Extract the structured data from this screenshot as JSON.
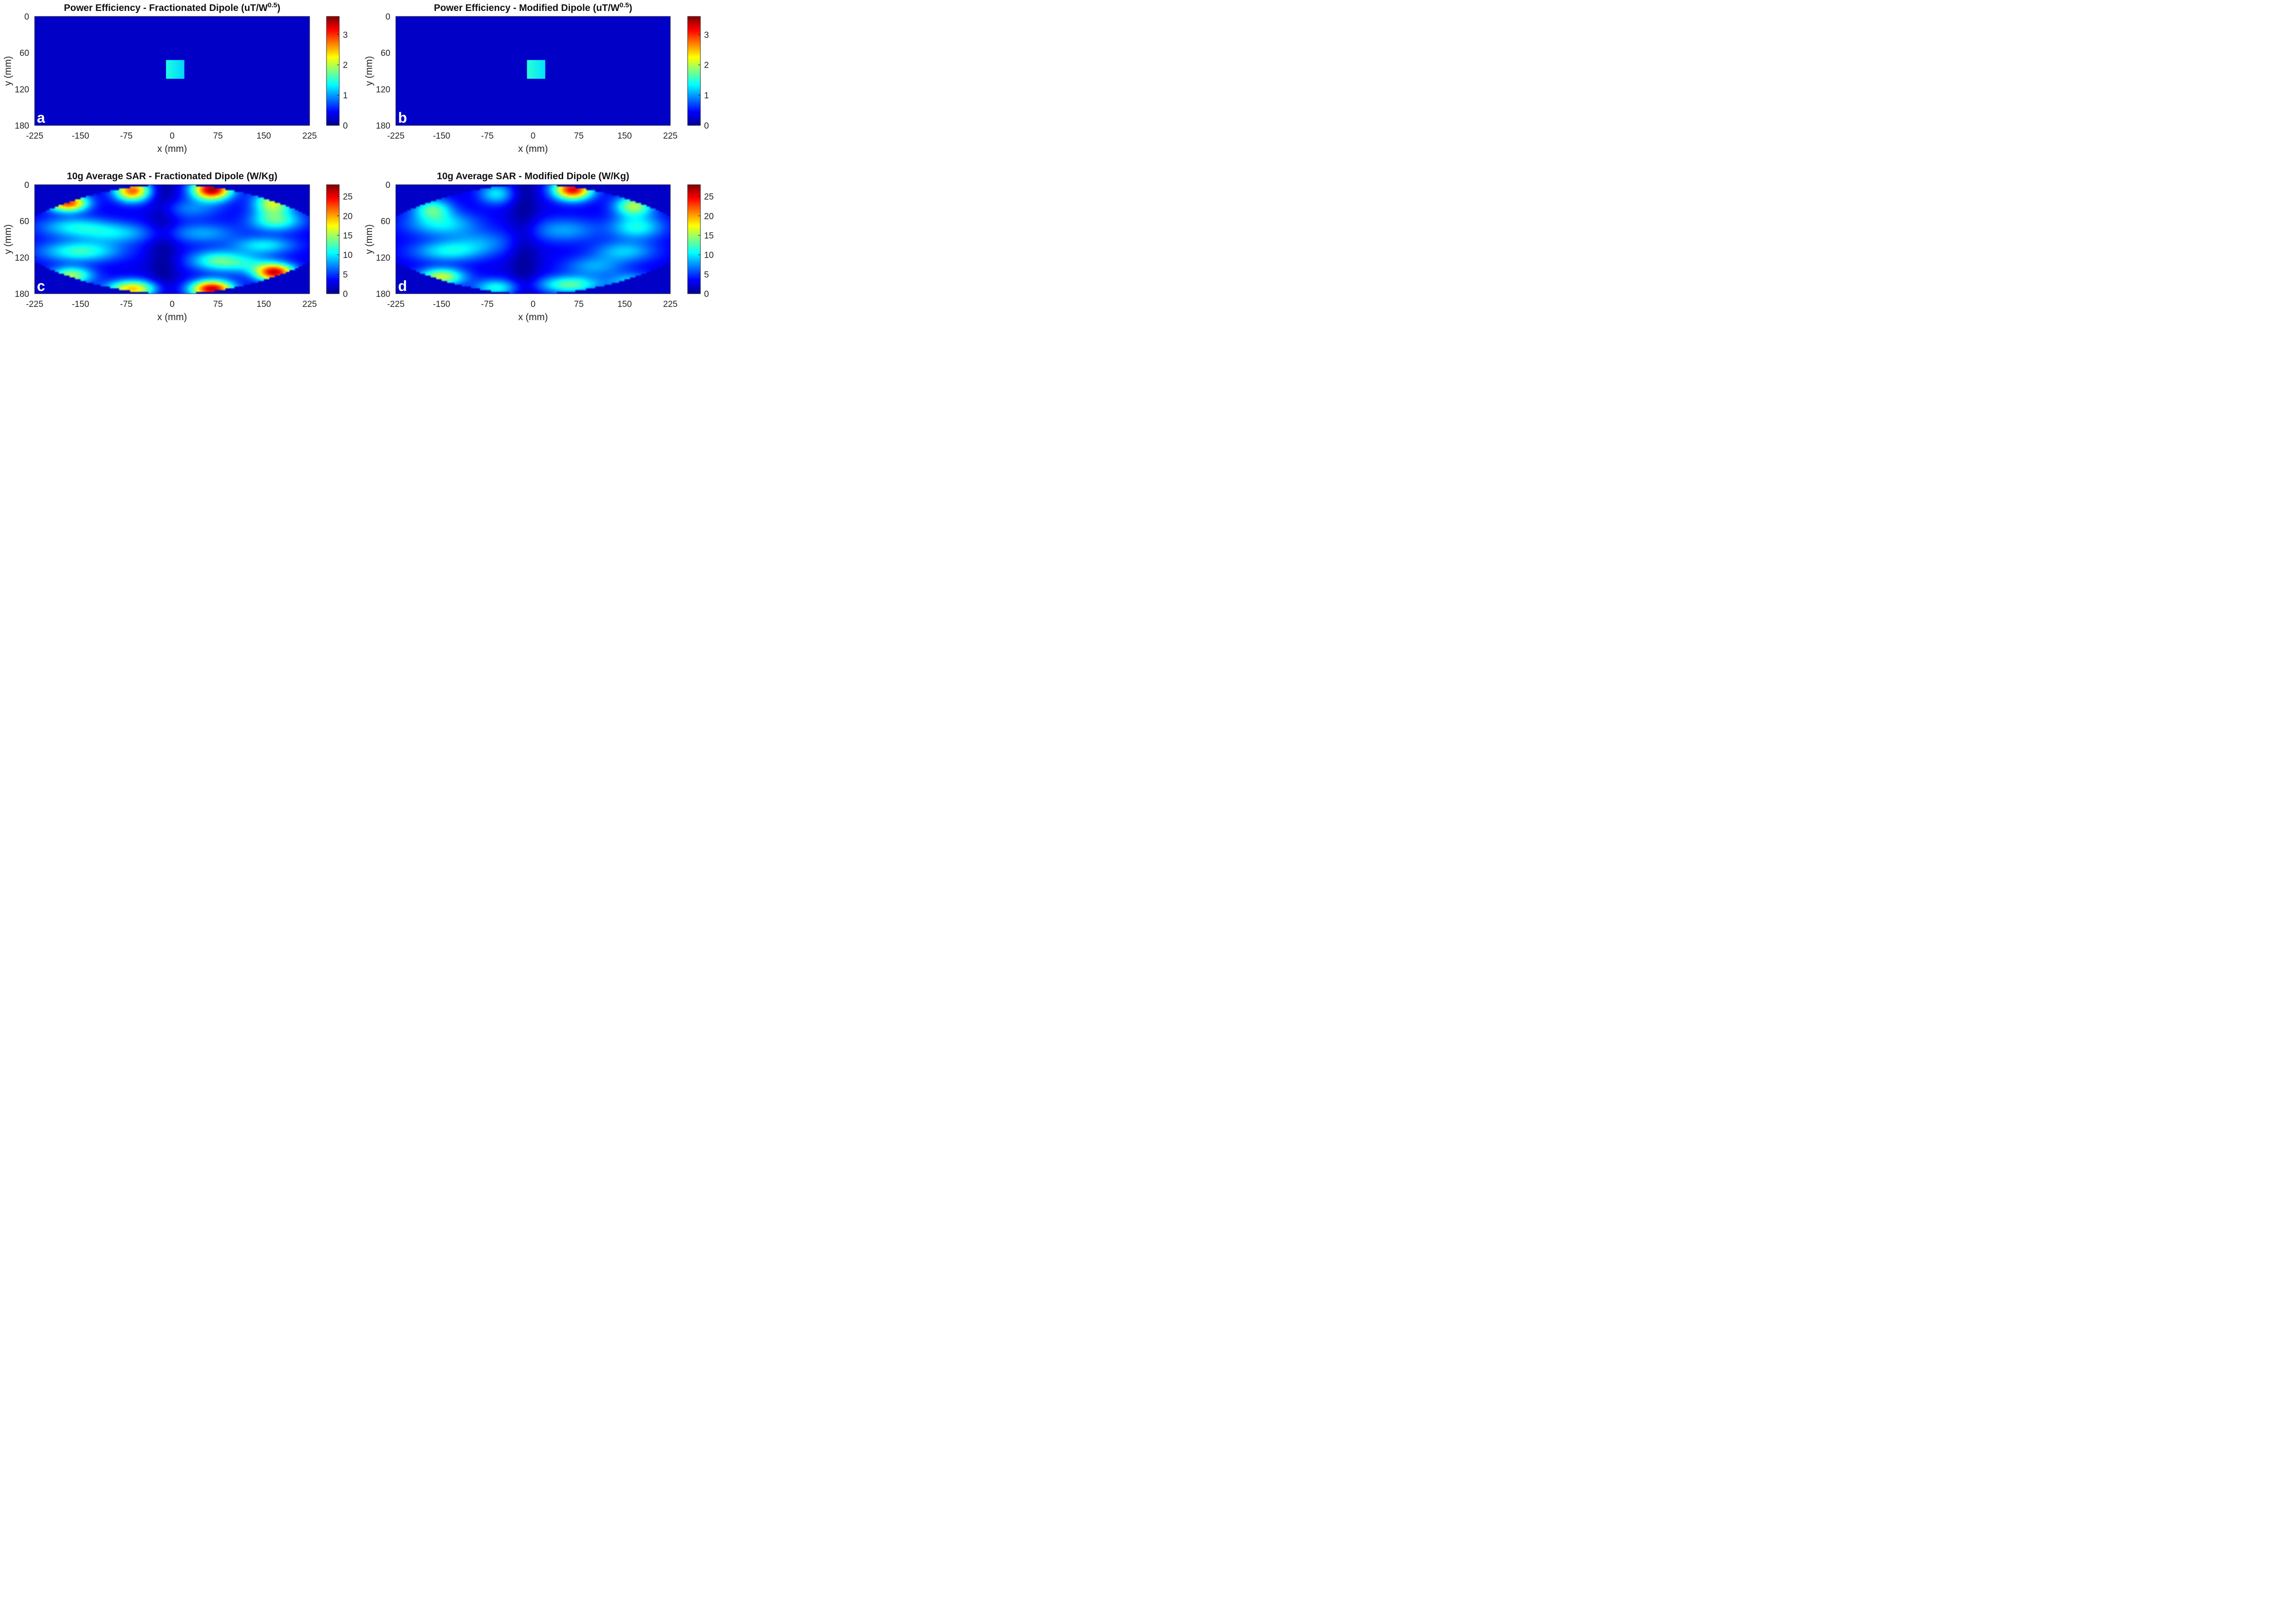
{
  "chart_data": [
    {
      "type": "heatmap",
      "panel": "a",
      "title_main": "Power Efficiency - Fractionated Dipole (uT/W",
      "title_sup": "0.5",
      "title_end": ")",
      "xlabel": "x (mm)",
      "ylabel": "y (mm)",
      "xlim": [
        -225,
        225
      ],
      "ylim": [
        0,
        180
      ],
      "xticks": [
        "-225",
        "-150",
        "-75",
        "0",
        "75",
        "150",
        "225"
      ],
      "yticks": [
        "0",
        "60",
        "120",
        "180"
      ],
      "colorbar": {
        "min": 0,
        "max": 3.6,
        "ticks": [
          "0",
          "1",
          "2",
          "3"
        ]
      },
      "field": "efficiency",
      "background_value": 0,
      "roi": {
        "x": [
          -10,
          20
        ],
        "y": [
          72,
          103
        ],
        "value_left": 1.45,
        "value_right": 1.2
      }
    },
    {
      "type": "heatmap",
      "panel": "b",
      "title_main": "Power Efficiency - Modified Dipole (uT/W",
      "title_sup": "0.5",
      "title_end": ")",
      "xlabel": "x (mm)",
      "ylabel": "y (mm)",
      "xlim": [
        -225,
        225
      ],
      "ylim": [
        0,
        180
      ],
      "xticks": [
        "-225",
        "-150",
        "-75",
        "0",
        "75",
        "150",
        "225"
      ],
      "yticks": [
        "0",
        "60",
        "120",
        "180"
      ],
      "colorbar": {
        "min": 0,
        "max": 3.6,
        "ticks": [
          "0",
          "1",
          "2",
          "3"
        ]
      },
      "field": "efficiency",
      "background_value": 0,
      "roi": {
        "x": [
          -10,
          20
        ],
        "y": [
          72,
          103
        ],
        "value_left": 1.5,
        "value_right": 1.25
      }
    },
    {
      "type": "heatmap",
      "panel": "c",
      "title_main": "10g Average SAR - Fractionated Dipole (W/Kg)",
      "title_sup": "",
      "title_end": "",
      "xlabel": "x (mm)",
      "ylabel": "y (mm)",
      "xlim": [
        -225,
        225
      ],
      "ylim": [
        0,
        180
      ],
      "xticks": [
        "-225",
        "-150",
        "-75",
        "0",
        "75",
        "150",
        "225"
      ],
      "yticks": [
        "0",
        "60",
        "120",
        "180"
      ],
      "colorbar": {
        "min": 0,
        "max": 28,
        "ticks": [
          "0",
          "5",
          "10",
          "15",
          "20",
          "25"
        ]
      },
      "field": "sar",
      "base_value": 3,
      "hotspots": [
        {
          "x": 65,
          "y": 8,
          "peak": 27,
          "sx": 22,
          "sy": 12
        },
        {
          "x": 65,
          "y": 172,
          "peak": 26,
          "sx": 24,
          "sy": 10
        },
        {
          "x": 168,
          "y": 145,
          "peak": 25,
          "sx": 22,
          "sy": 10
        },
        {
          "x": -170,
          "y": 30,
          "peak": 23,
          "sx": 22,
          "sy": 10
        },
        {
          "x": -65,
          "y": 10,
          "peak": 22,
          "sx": 20,
          "sy": 12
        },
        {
          "x": -65,
          "y": 172,
          "peak": 19,
          "sx": 28,
          "sy": 10
        },
        {
          "x": -165,
          "y": 150,
          "peak": 15,
          "sx": 24,
          "sy": 10
        },
        {
          "x": 165,
          "y": 30,
          "peak": 16,
          "sx": 22,
          "sy": 14
        },
        {
          "x": 170,
          "y": 60,
          "peak": 12,
          "sx": 30,
          "sy": 12
        },
        {
          "x": -150,
          "y": 110,
          "peak": 12,
          "sx": 45,
          "sy": 12
        },
        {
          "x": 150,
          "y": 100,
          "peak": 10,
          "sx": 35,
          "sy": 10
        },
        {
          "x": 70,
          "y": 125,
          "peak": 11,
          "sx": 30,
          "sy": 12
        },
        {
          "x": -90,
          "y": 80,
          "peak": 9,
          "sx": 40,
          "sy": 12
        },
        {
          "x": -160,
          "y": 70,
          "peak": 10,
          "sx": 40,
          "sy": 12
        },
        {
          "x": 50,
          "y": 80,
          "peak": 8,
          "sx": 40,
          "sy": 12
        },
        {
          "x": 120,
          "y": 130,
          "peak": 9,
          "sx": 35,
          "sy": 12
        },
        {
          "x": 30,
          "y": 40,
          "peak": 7,
          "sx": 35,
          "sy": 12
        }
      ]
    },
    {
      "type": "heatmap",
      "panel": "d",
      "title_main": "10g Average SAR - Modified Dipole (W/Kg)",
      "title_sup": "",
      "title_end": "",
      "xlabel": "x (mm)",
      "ylabel": "y (mm)",
      "xlim": [
        -225,
        225
      ],
      "ylim": [
        0,
        180
      ],
      "xticks": [
        "-225",
        "-150",
        "-75",
        "0",
        "75",
        "150",
        "225"
      ],
      "yticks": [
        "0",
        "60",
        "120",
        "180"
      ],
      "colorbar": {
        "min": 0,
        "max": 28,
        "ticks": [
          "0",
          "5",
          "10",
          "15",
          "20",
          "25"
        ]
      },
      "field": "sar",
      "base_value": 3,
      "hotspots": [
        {
          "x": 65,
          "y": 8,
          "peak": 25,
          "sx": 22,
          "sy": 12
        },
        {
          "x": -150,
          "y": 152,
          "peak": 16,
          "sx": 26,
          "sy": 10
        },
        {
          "x": 165,
          "y": 35,
          "peak": 15,
          "sx": 22,
          "sy": 12
        },
        {
          "x": -165,
          "y": 40,
          "peak": 12,
          "sx": 22,
          "sy": 12
        },
        {
          "x": 60,
          "y": 165,
          "peak": 13,
          "sx": 35,
          "sy": 10
        },
        {
          "x": -60,
          "y": 170,
          "peak": 11,
          "sx": 25,
          "sy": 10
        },
        {
          "x": -60,
          "y": 15,
          "peak": 10,
          "sx": 20,
          "sy": 12
        },
        {
          "x": -150,
          "y": 65,
          "peak": 10,
          "sx": 40,
          "sy": 14
        },
        {
          "x": 170,
          "y": 70,
          "peak": 11,
          "sx": 30,
          "sy": 14
        },
        {
          "x": -140,
          "y": 110,
          "peak": 10,
          "sx": 40,
          "sy": 12
        },
        {
          "x": 150,
          "y": 110,
          "peak": 9,
          "sx": 35,
          "sy": 12
        },
        {
          "x": 50,
          "y": 75,
          "peak": 8,
          "sx": 40,
          "sy": 14
        },
        {
          "x": -85,
          "y": 95,
          "peak": 7,
          "sx": 40,
          "sy": 14
        },
        {
          "x": 100,
          "y": 135,
          "peak": 8,
          "sx": 35,
          "sy": 12
        },
        {
          "x": 160,
          "y": 160,
          "peak": 9,
          "sx": 25,
          "sy": 10
        }
      ]
    }
  ]
}
